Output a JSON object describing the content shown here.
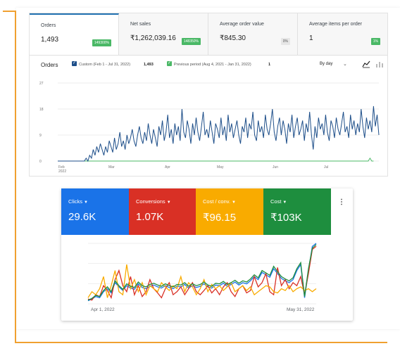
{
  "orders_panel": {
    "kpis": [
      {
        "label": "Orders",
        "value": "1,493",
        "delta": "149300%",
        "delta_color": "#4ab866",
        "active": true
      },
      {
        "label": "Net sales",
        "value": "₹1,262,039.16",
        "delta": "148350%",
        "delta_color": "#4ab866"
      },
      {
        "label": "Average order value",
        "value": "₹845.30",
        "delta": "0%",
        "delta_color": "#e6e6e6"
      },
      {
        "label": "Average items per order",
        "value": "1",
        "delta": "1%",
        "delta_color": "#4ab866"
      }
    ],
    "chart_title": "Orders",
    "legend": [
      {
        "label": "Custom (Feb 1 - Jul 31, 2022)",
        "count": "1,493",
        "color": "#1d4e89"
      },
      {
        "label": "Previous period (Aug 4, 2021 - Jan 31, 2022)",
        "count": "1",
        "color": "#4ab866"
      }
    ],
    "interval": "By day",
    "icons": {
      "chevron": "chevron-down-icon",
      "line": "line-chart-icon",
      "bar": "bar-chart-icon"
    }
  },
  "ads_panel": {
    "metrics": [
      {
        "label": "Clicks",
        "value": "29.6K",
        "color": "#1a73e8"
      },
      {
        "label": "Conversions",
        "value": "1.07K",
        "color": "#d93025"
      },
      {
        "label": "Cost / conv.",
        "value": "₹96.15",
        "color": "#f9ab00"
      },
      {
        "label": "Cost",
        "value": "₹103K",
        "color": "#1e8e3e"
      }
    ],
    "more_icon": "more-vert-icon"
  },
  "chart_data": [
    {
      "type": "line",
      "title": "Orders",
      "xlabel": "",
      "ylabel": "",
      "x_tick_labels": [
        "Feb 2022",
        "Mar",
        "Apr",
        "May",
        "Jun",
        "Jul"
      ],
      "y_ticks": [
        0,
        9,
        18,
        27
      ],
      "ylim": [
        0,
        27
      ],
      "grid": true,
      "series": [
        {
          "name": "Custom (Feb 1 - Jul 31, 2022)",
          "color": "#1d4e89",
          "values": [
            0,
            0,
            0,
            0,
            0,
            0,
            0,
            0,
            0,
            0,
            0,
            0,
            0,
            0,
            0,
            0,
            1,
            0,
            2,
            1,
            4,
            2,
            5,
            3,
            6,
            4,
            2,
            5,
            3,
            7,
            5,
            3,
            8,
            4,
            6,
            10,
            5,
            7,
            4,
            9,
            6,
            8,
            11,
            7,
            5,
            9,
            12,
            8,
            6,
            10,
            7,
            13,
            9,
            6,
            11,
            8,
            5,
            12,
            9,
            14,
            7,
            10,
            16,
            8,
            11,
            6,
            13,
            9,
            12,
            7,
            18,
            10,
            8,
            14,
            11,
            6,
            13,
            9,
            15,
            10,
            7,
            12,
            17,
            9,
            11,
            8,
            14,
            10,
            6,
            13,
            11,
            8,
            15,
            9,
            12,
            7,
            16,
            10,
            13,
            8,
            11,
            14,
            9,
            6,
            12,
            10,
            15,
            8,
            13,
            11,
            17,
            9,
            7,
            14,
            10,
            12,
            8,
            16,
            11,
            9,
            13,
            18,
            10,
            7,
            12,
            15,
            9,
            14,
            11,
            6,
            13,
            10,
            16,
            8,
            12,
            15,
            9,
            11,
            14,
            7,
            13,
            10,
            17,
            9,
            4,
            12,
            8,
            15,
            11,
            13,
            9,
            16,
            10,
            7,
            14,
            12,
            8,
            15,
            11,
            9,
            13,
            17,
            10,
            12,
            8,
            16,
            11,
            14,
            9,
            13,
            10,
            18,
            12,
            8,
            15,
            11,
            14,
            10,
            19,
            12,
            16,
            9
          ]
        },
        {
          "name": "Previous period (Aug 4, 2021 - Jan 31, 2022)",
          "color": "#4ab866",
          "values": [
            0,
            0,
            0,
            0,
            0,
            0,
            0,
            0,
            0,
            0,
            0,
            0,
            0,
            0,
            0,
            0,
            0,
            0,
            0,
            0,
            0,
            0,
            0,
            0,
            0,
            0,
            0,
            0,
            0,
            0,
            0,
            0,
            0,
            0,
            0,
            0,
            0,
            0,
            0,
            0,
            0,
            0,
            0,
            0,
            0,
            0,
            0,
            0,
            0,
            0,
            0,
            0,
            0,
            0,
            0,
            0,
            0,
            0,
            0,
            0,
            0,
            0,
            0,
            0,
            0,
            0,
            0,
            0,
            0,
            0,
            0,
            0,
            0,
            0,
            0,
            0,
            0,
            0,
            0,
            0,
            0,
            0,
            0,
            0,
            0,
            0,
            0,
            0,
            0,
            0,
            0,
            0,
            0,
            0,
            0,
            0,
            0,
            0,
            0,
            0,
            0,
            0,
            0,
            0,
            0,
            0,
            0,
            0,
            0,
            0,
            0,
            0,
            0,
            0,
            0,
            0,
            0,
            0,
            0,
            0,
            0,
            0,
            0,
            0,
            0,
            0,
            0,
            0,
            0,
            0,
            0,
            0,
            0,
            0,
            0,
            0,
            0,
            0,
            0,
            0,
            0,
            0,
            0,
            0,
            0,
            0,
            0,
            0,
            0,
            0,
            0,
            0,
            0,
            0,
            0,
            0,
            0,
            0,
            0,
            0,
            0,
            0,
            0,
            0,
            0,
            0,
            0,
            0,
            0,
            0,
            0,
            0,
            0,
            0,
            0,
            0,
            1,
            0,
            0
          ]
        }
      ]
    },
    {
      "type": "line",
      "title": "",
      "xlabel": "",
      "ylabel": "",
      "x_tick_labels": [
        "Apr 1, 2022",
        "May 31, 2022"
      ],
      "ylim": [
        0,
        100
      ],
      "grid": true,
      "series": [
        {
          "name": "Clicks",
          "color": "#1a73e8",
          "values": [
            5,
            8,
            12,
            10,
            20,
            25,
            18,
            35,
            28,
            22,
            30,
            26,
            24,
            33,
            27,
            25,
            29,
            31,
            28,
            26,
            30,
            27,
            25,
            29,
            28,
            32,
            26,
            30,
            27,
            29,
            33,
            28,
            26,
            31,
            30,
            34,
            29,
            32,
            36,
            31,
            35,
            33,
            38,
            45,
            40,
            52,
            48,
            44,
            58,
            50,
            42,
            38,
            35,
            40,
            55,
            65,
            10,
            55,
            95,
            100
          ]
        },
        {
          "name": "Conversions",
          "color": "#d93025",
          "values": [
            8,
            6,
            15,
            12,
            30,
            22,
            10,
            40,
            55,
            30,
            20,
            45,
            15,
            30,
            12,
            20,
            40,
            25,
            18,
            10,
            25,
            35,
            15,
            20,
            28,
            15,
            25,
            35,
            20,
            15,
            22,
            30,
            18,
            25,
            15,
            28,
            35,
            20,
            12,
            25,
            30,
            18,
            22,
            45,
            28,
            35,
            50,
            20,
            15,
            60,
            30,
            40,
            25,
            35,
            30,
            45,
            15,
            50,
            90,
            95
          ]
        },
        {
          "name": "Cost / conv.",
          "color": "#f9ab00",
          "values": [
            10,
            20,
            15,
            25,
            45,
            10,
            30,
            55,
            20,
            15,
            65,
            25,
            40,
            20,
            35,
            15,
            30,
            25,
            20,
            35,
            28,
            22,
            30,
            25,
            45,
            20,
            35,
            28,
            15,
            25,
            40,
            20,
            32,
            25,
            30,
            22,
            28,
            35,
            20,
            25,
            30,
            22,
            28,
            15,
            20,
            25,
            30,
            28,
            20,
            18,
            25,
            22,
            30,
            20,
            25,
            28,
            22,
            25,
            20,
            25
          ]
        },
        {
          "name": "Cost",
          "color": "#1e8e3e",
          "values": [
            6,
            9,
            14,
            12,
            22,
            28,
            20,
            38,
            30,
            24,
            33,
            29,
            27,
            36,
            30,
            28,
            32,
            34,
            31,
            29,
            33,
            30,
            28,
            32,
            31,
            35,
            29,
            33,
            30,
            32,
            36,
            31,
            29,
            34,
            33,
            37,
            32,
            35,
            39,
            34,
            38,
            36,
            41,
            48,
            43,
            55,
            51,
            47,
            62,
            53,
            45,
            41,
            38,
            43,
            58,
            68,
            12,
            58,
            92,
            98
          ]
        }
      ]
    }
  ]
}
